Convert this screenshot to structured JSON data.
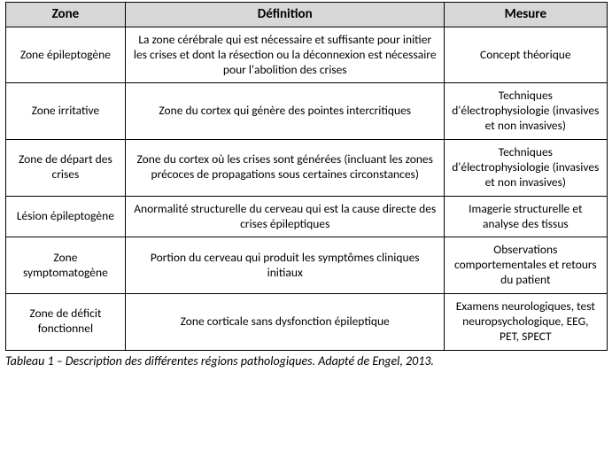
{
  "table": {
    "columns": [
      "Zone",
      "Définition",
      "Mesure"
    ],
    "column_widths": [
      "20%",
      "53%",
      "27%"
    ],
    "header_bg": "#d7d7d7",
    "border_color": "#000000",
    "header_fontsize": 15,
    "cell_fontsize": 13.5,
    "font_family": "Calibri, Arial, sans-serif",
    "rows": [
      {
        "zone": "Zone épileptogène",
        "definition": "La zone cérébrale qui est nécessaire et suffisante pour initier les crises et dont la résection ou la déconnexion est nécessaire pour l'abolition des crises",
        "mesure": "Concept théorique"
      },
      {
        "zone": "Zone irritative",
        "definition": "Zone du cortex qui génère des pointes intercritiques",
        "mesure": "Techniques d'électrophysiologie (invasives et non invasives)"
      },
      {
        "zone": "Zone de départ des crises",
        "definition": "Zone du cortex où les crises sont générées (incluant les zones précoces de propagations sous certaines circonstances)",
        "mesure": "Techniques d'électrophysiologie (invasives et non invasives)"
      },
      {
        "zone": "Lésion épileptogène",
        "definition": "Anormalité structurelle du cerveau qui est la cause directe des crises épileptiques",
        "mesure": "Imagerie structurelle et analyse des tissus"
      },
      {
        "zone": "Zone symptomatogène",
        "definition": "Portion du cerveau qui produit les symptômes cliniques initiaux",
        "mesure": "Observations comportementales et retours du patient"
      },
      {
        "zone": "Zone de déficit fonctionnel",
        "definition": "Zone corticale sans dysfonction épileptique",
        "mesure": "Examens neurologiques, test neuropsychologique, EEG, PET, SPECT"
      }
    ]
  },
  "caption": "Tableau 1 – Description des différentes régions pathologiques. Adapté de Engel, 2013."
}
